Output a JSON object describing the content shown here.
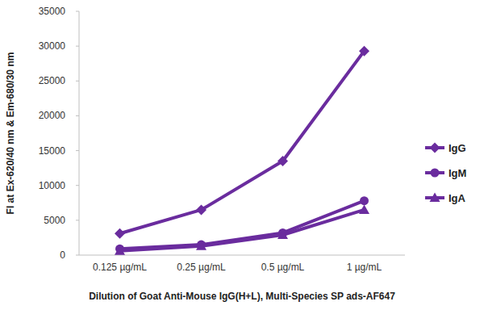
{
  "chart_data": {
    "type": "line",
    "y_label": "FI at Ex-620/40 nm & Em-680/30 nm",
    "x_label": "Dilution of Goat Anti-Mouse IgG(H+L), Multi-Species SP ads-AF647",
    "categories": [
      "0.125 µg/mL",
      "0.25 µg/mL",
      "0.5 µg/mL",
      "1 µg/mL"
    ],
    "series": [
      {
        "name": "IgG",
        "color": "#6a2c9e",
        "marker": "diamond",
        "values": [
          3100,
          6500,
          13500,
          29300
        ]
      },
      {
        "name": "IgM",
        "color": "#6a2c9e",
        "marker": "circle",
        "values": [
          900,
          1500,
          3200,
          7800
        ]
      },
      {
        "name": "IgA",
        "color": "#6a2c9e",
        "marker": "triangle",
        "values": [
          600,
          1300,
          2900,
          6500
        ]
      }
    ],
    "ylim": [
      0,
      35000
    ],
    "yticks": [
      0,
      5000,
      10000,
      15000,
      20000,
      25000,
      30000,
      35000
    ],
    "grid": false,
    "legend": "right"
  }
}
